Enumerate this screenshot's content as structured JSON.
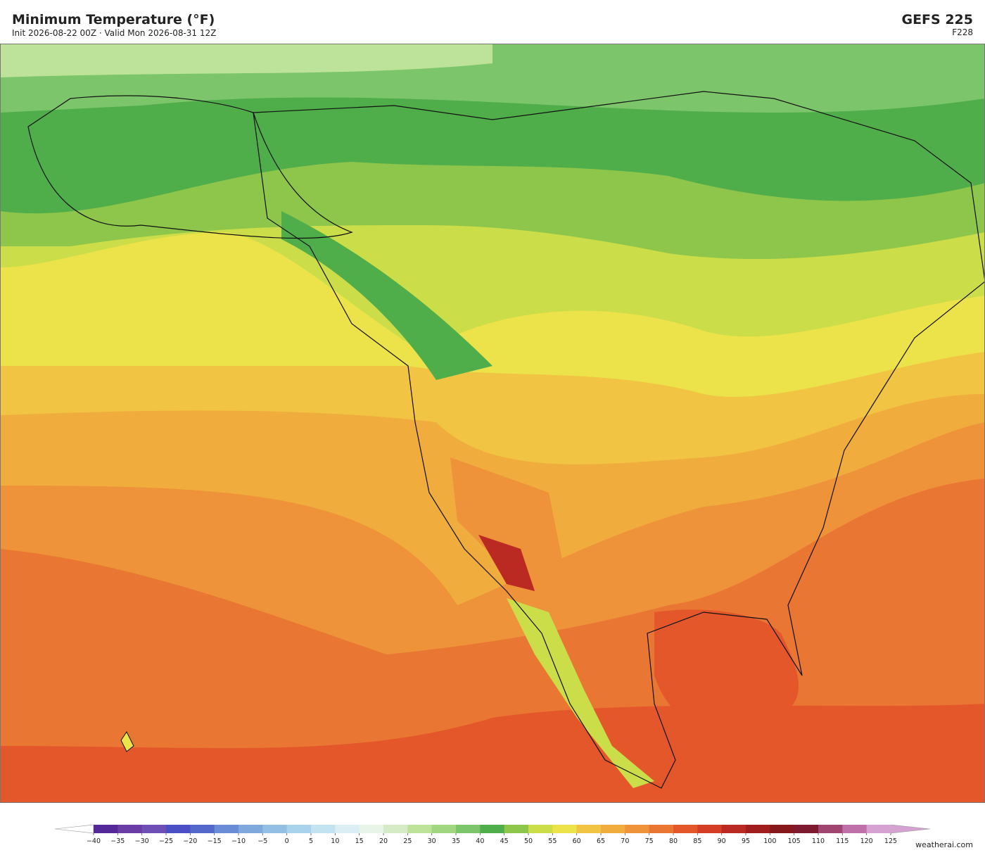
{
  "header": {
    "title": "Minimum Temperature  (°F)",
    "subtitle": "Init 2026-08-22 00Z  ·  Valid Mon 2026-08-31 12Z",
    "model": "GEFS  225",
    "forecast_hour": "F228"
  },
  "colorbar": {
    "ticks": [
      {
        "value": -40,
        "label": "−40"
      },
      {
        "value": -35,
        "label": "−35"
      },
      {
        "value": -30,
        "label": "−30"
      },
      {
        "value": -25,
        "label": "−25"
      },
      {
        "value": -20,
        "label": "−20"
      },
      {
        "value": -15,
        "label": "−15"
      },
      {
        "value": -10,
        "label": "−10"
      },
      {
        "value": -5,
        "label": "−5"
      },
      0,
      5,
      10,
      15,
      20,
      25,
      30,
      35,
      40,
      45,
      50,
      55,
      60,
      65,
      70,
      75,
      80,
      85,
      90,
      95,
      100,
      105,
      110,
      115,
      120,
      125
    ],
    "colors": [
      "#55289a",
      "#6a3ca6",
      "#6e4fb5",
      "#4a4fc6",
      "#5468cc",
      "#6a8cd6",
      "#7fa8dc",
      "#93bfe4",
      "#a9d3ec",
      "#c3e3f0",
      "#daeef3",
      "#e8f4e8",
      "#d4ebc6",
      "#bde39b",
      "#9fd67f",
      "#7cc56a",
      "#4fad4a",
      "#8dc64a",
      "#cbdd48",
      "#ece24a",
      "#f2c443",
      "#f0ad3e",
      "#ee933a",
      "#e97632",
      "#e4572b",
      "#d63d26",
      "#bb2a22",
      "#a01f1e",
      "#86171a",
      "#7e1a2f",
      "#a0456f",
      "#c070a8",
      "#d5a2d2"
    ],
    "under_color": "#ffffff",
    "over_color": "#d5a2d2"
  },
  "credit": "weatherai.com"
}
